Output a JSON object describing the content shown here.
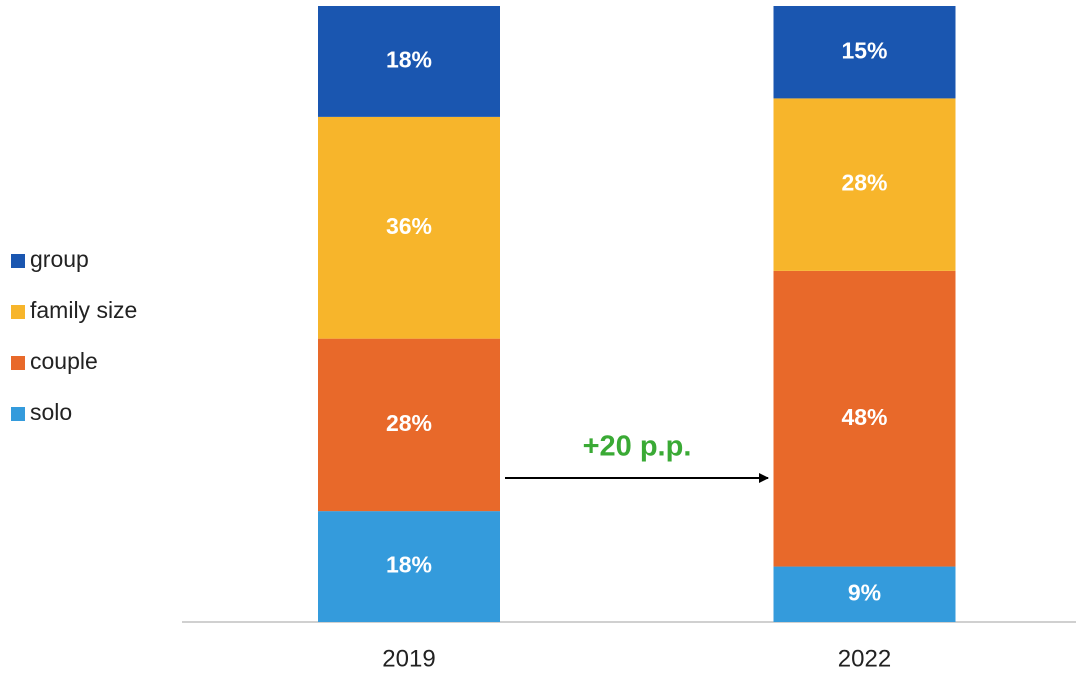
{
  "chart_data": {
    "type": "stacked_bar",
    "categories": [
      "2019",
      "2022"
    ],
    "series": [
      {
        "name": "solo",
        "color": "#349bdc",
        "values": [
          18,
          9
        ],
        "value_labels": [
          "18%",
          "9%"
        ]
      },
      {
        "name": "couple",
        "color": "#e8692a",
        "values": [
          28,
          48
        ],
        "value_labels": [
          "28%",
          "48%"
        ]
      },
      {
        "name": "family size",
        "color": "#f7b52b",
        "values": [
          36,
          28
        ],
        "value_labels": [
          "36%",
          "28%"
        ]
      },
      {
        "name": "group",
        "color": "#1a56b0",
        "values": [
          18,
          15
        ],
        "value_labels": [
          "18%",
          "15%"
        ]
      }
    ],
    "ylim": [
      0,
      100
    ],
    "legend": "left",
    "annotation": "+20 p.p."
  }
}
